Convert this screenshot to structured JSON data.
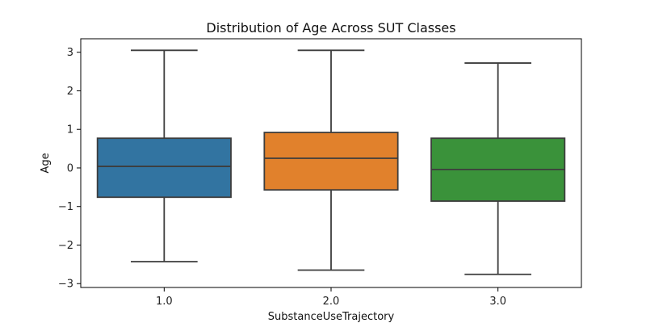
{
  "chart_data": {
    "type": "box",
    "title": "Distribution of Age Across SUT Classes",
    "xlabel": "SubstanceUseTrajectory",
    "ylabel": "Age",
    "ylim": [
      -3.1,
      3.35
    ],
    "yticks": [
      3,
      2,
      1,
      0,
      -1,
      -2,
      -3
    ],
    "ytick_labels": [
      "3",
      "2",
      "1",
      "0",
      "−1",
      "−2",
      "−3"
    ],
    "categories": [
      "1.0",
      "2.0",
      "3.0"
    ],
    "boxes": [
      {
        "category": "1.0",
        "whisker_low": -2.43,
        "q1": -0.76,
        "median": 0.04,
        "q3": 0.77,
        "whisker_high": 3.05,
        "color": "#3274a1"
      },
      {
        "category": "2.0",
        "whisker_low": -2.65,
        "q1": -0.57,
        "median": 0.25,
        "q3": 0.92,
        "whisker_high": 3.05,
        "color": "#e1812c"
      },
      {
        "category": "3.0",
        "whisker_low": -2.76,
        "q1": -0.86,
        "median": -0.04,
        "q3": 0.77,
        "whisker_high": 2.72,
        "color": "#3a923a"
      }
    ],
    "line_color": "#3d3d3d",
    "grid": false,
    "legend": "none"
  }
}
